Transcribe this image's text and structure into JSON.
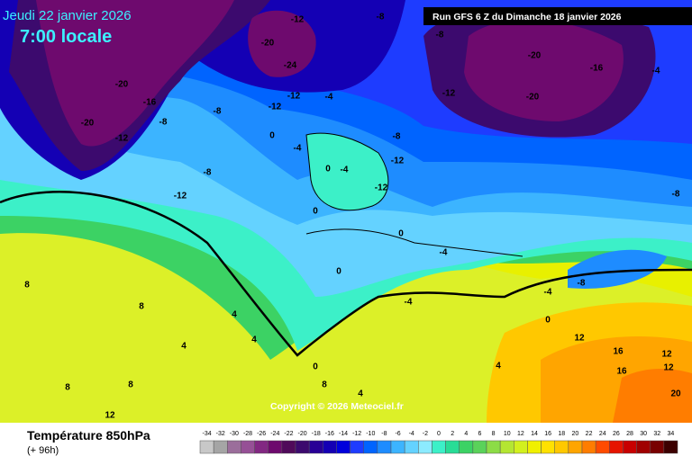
{
  "header": {
    "date": "Jeudi 22 janvier 2026",
    "time": "7:00 locale",
    "run": "Run GFS 6 Z du Dimanche 18 janvier 2026"
  },
  "copyright": "Copyright © 2026 Meteociel.fr",
  "footer": {
    "title": "Température 850hPa",
    "lead": "(+ 96h)"
  },
  "scale": {
    "values": [
      -34,
      -32,
      -30,
      -28,
      -26,
      -24,
      -22,
      -20,
      -18,
      -16,
      -14,
      -12,
      -10,
      -8,
      -6,
      -4,
      -2,
      0,
      2,
      4,
      6,
      8,
      10,
      12,
      14,
      16,
      18,
      20,
      22,
      24,
      26,
      28,
      30,
      32,
      34
    ],
    "colors": [
      "#c8c8c8",
      "#a5a5a5",
      "#9b6e9b",
      "#965096",
      "#822882",
      "#6e0a6e",
      "#500a5a",
      "#3c0a6e",
      "#280096",
      "#1400b4",
      "#0000dc",
      "#1e3cff",
      "#0064ff",
      "#1e8cff",
      "#3cb4ff",
      "#64d2ff",
      "#8cebff",
      "#3cf0c8",
      "#28dc96",
      "#3cd264",
      "#5ad25a",
      "#8cdc46",
      "#b4e632",
      "#d2f01e",
      "#f0f000",
      "#ffe100",
      "#ffc800",
      "#ffa500",
      "#ff7d00",
      "#ff4b00",
      "#e61400",
      "#c80000",
      "#a00000",
      "#780000",
      "#3c0000"
    ]
  },
  "contour_labels": [
    "-20",
    "-16",
    "-20",
    "-12",
    "-8",
    "-12",
    "-8",
    "-20",
    "-24",
    "-12",
    "-8",
    "-8",
    "-12",
    "-20",
    "-16",
    "-20",
    "-4",
    "-8",
    "-4",
    "-12",
    "-12",
    "-8",
    "0",
    "-4",
    "-4",
    "0",
    "-12",
    "-12",
    "-8",
    "0",
    "0",
    "0",
    "-4",
    "-8",
    "-4",
    "0",
    "12",
    "16",
    "12",
    "12",
    "20",
    "16",
    "4",
    "4",
    "8",
    "4",
    "4",
    "8",
    "8",
    "8",
    "12",
    "8",
    "4",
    "0",
    "-4"
  ]
}
